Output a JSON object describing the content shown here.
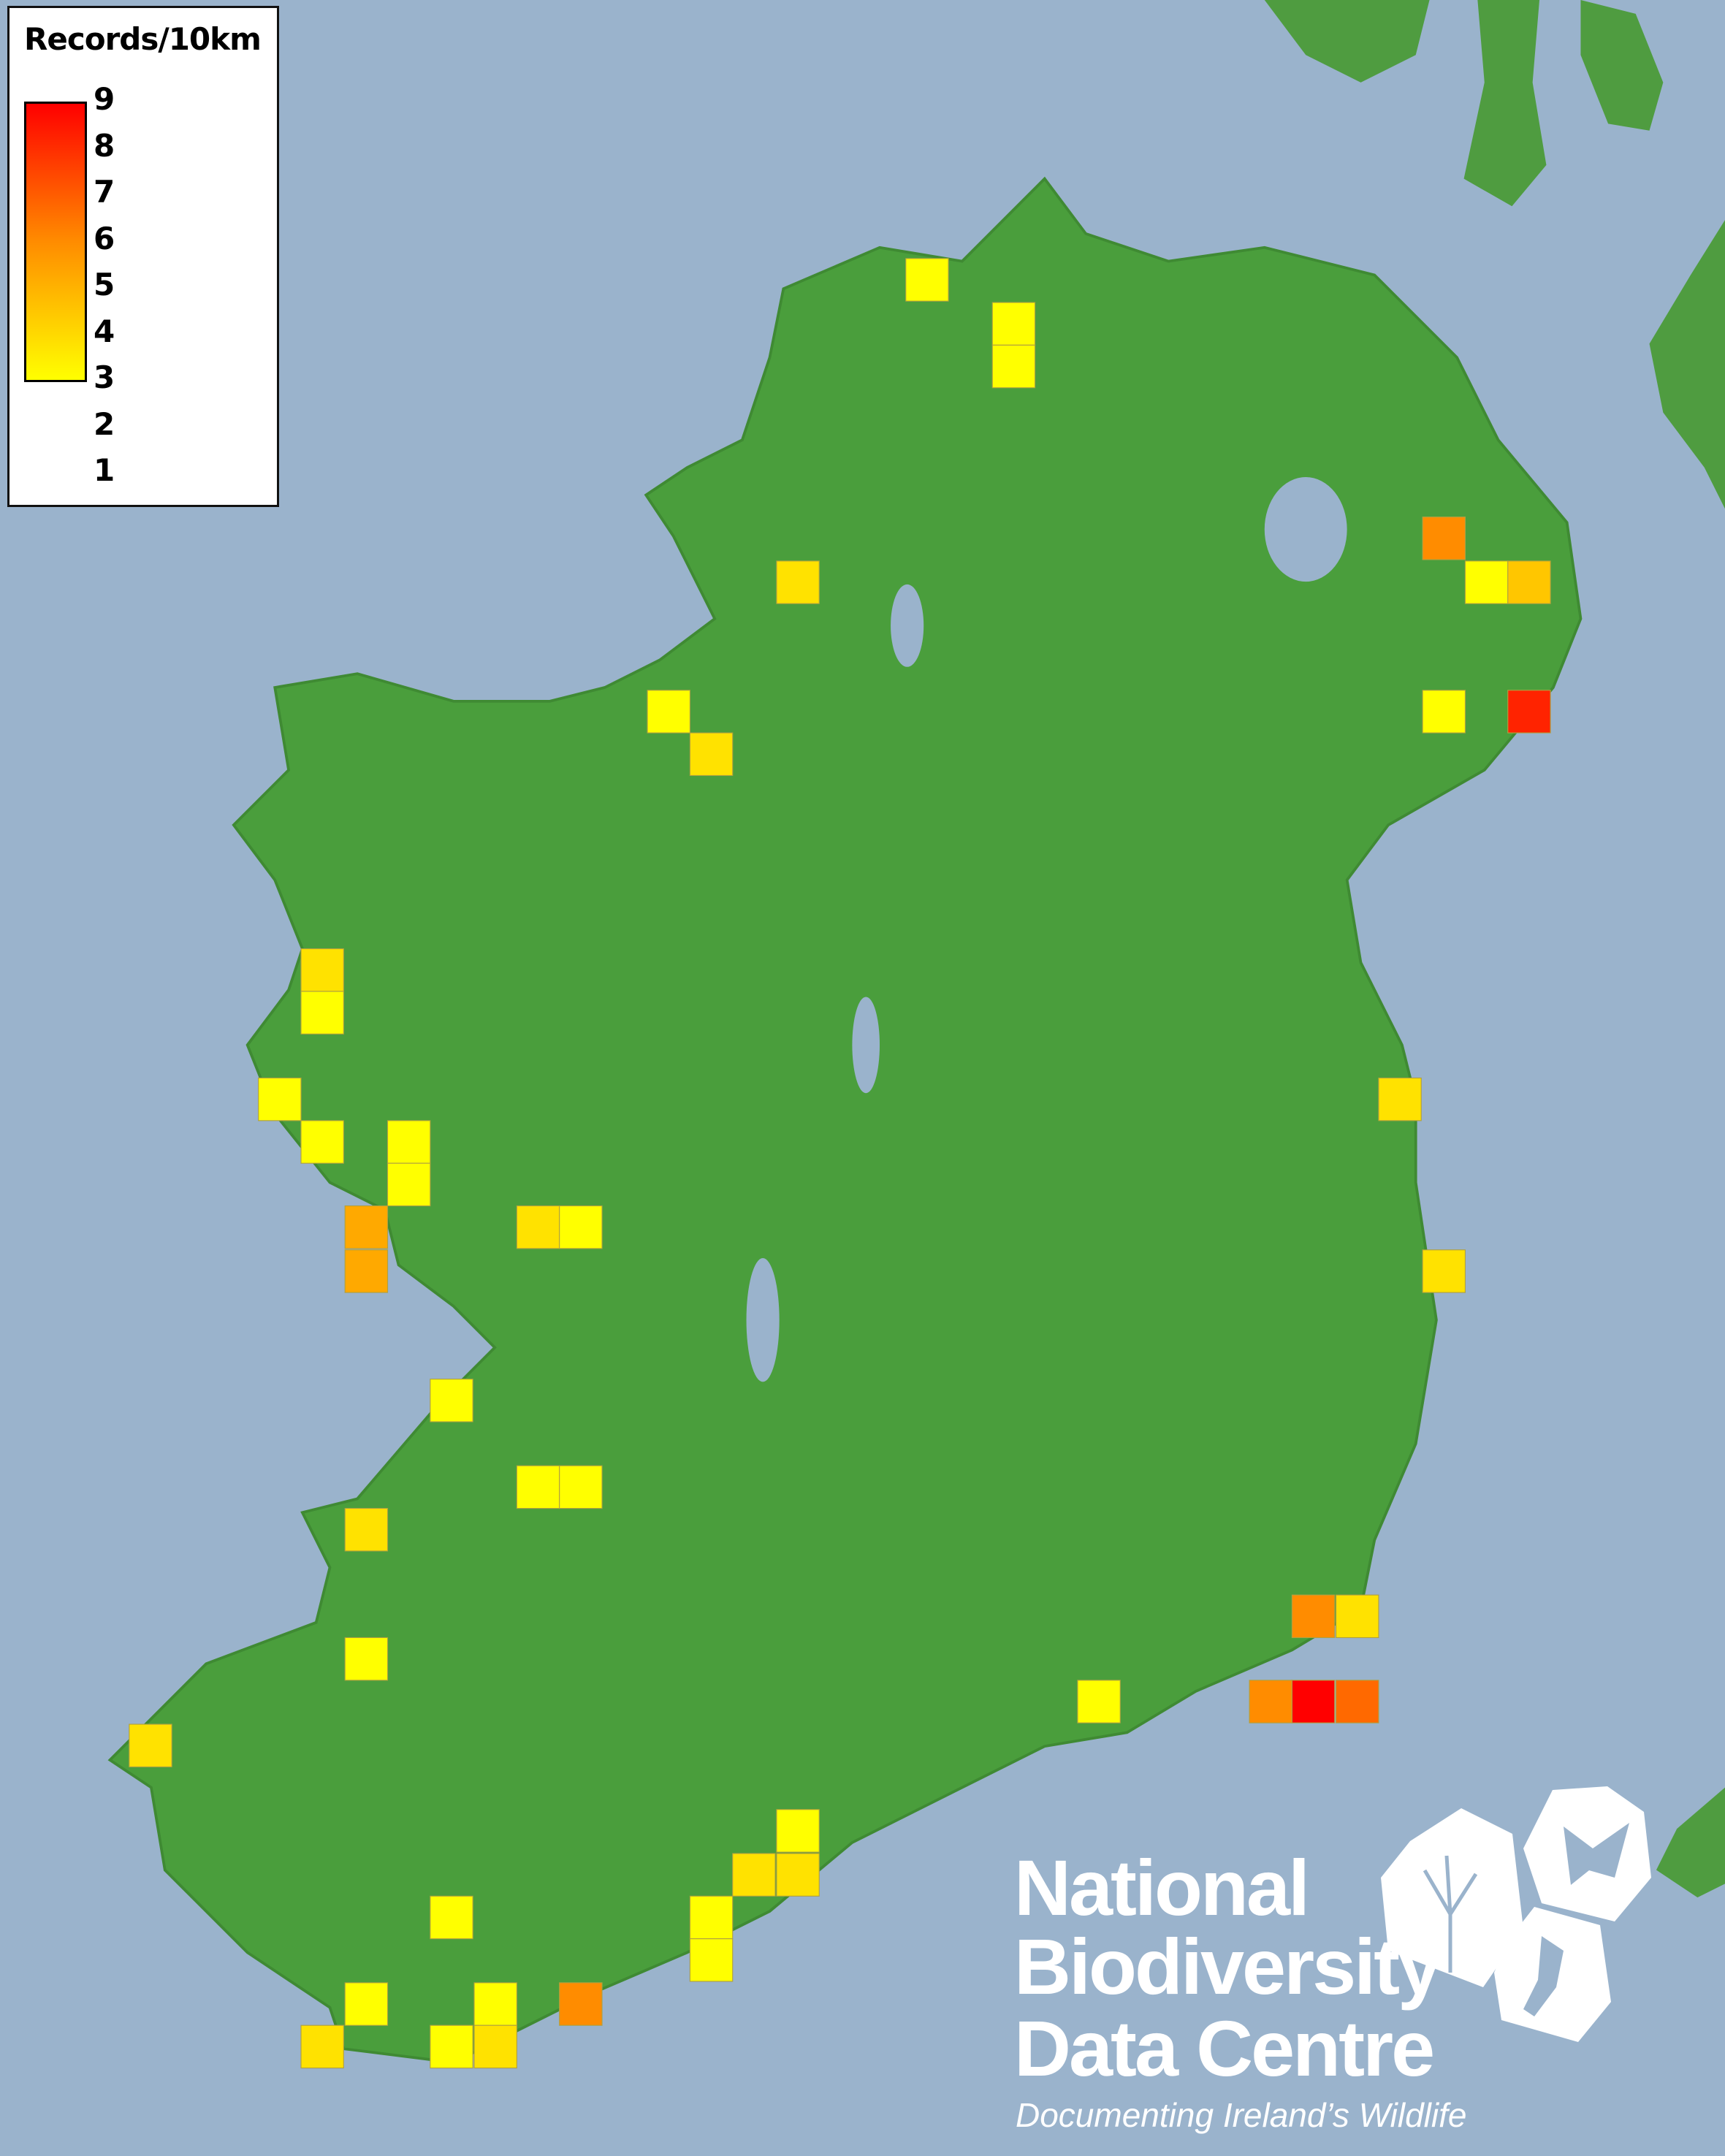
{
  "legend": {
    "title": "Records/10km",
    "ticks": [
      "9",
      "8",
      "7",
      "6",
      "5",
      "4",
      "3",
      "2",
      "1"
    ],
    "min": 1,
    "max": 9,
    "colors": {
      "low": "#ffff00",
      "mid": "#ff8c00",
      "high": "#ff0000"
    }
  },
  "map": {
    "sea_color": "#9ab3cc",
    "land_color": "#4a9e3c",
    "cell_records": [
      1,
      1,
      1,
      2,
      5,
      1,
      3,
      1,
      8,
      1,
      2,
      2,
      1,
      1,
      1,
      1,
      1,
      4,
      4,
      2,
      1,
      2,
      2,
      1,
      1,
      1,
      2,
      1,
      2,
      1,
      5,
      2,
      5,
      9,
      6,
      1,
      2,
      2,
      1,
      1,
      1,
      1,
      1,
      5,
      2,
      1,
      2
    ]
  },
  "logo": {
    "line1": "National",
    "line2": "Biodiversity",
    "line3": "Data Centre",
    "tagline": "Documenting Ireland’s Wildlife",
    "icons": [
      "tree-icon",
      "butterfly-icon",
      "seahorse-icon"
    ]
  }
}
